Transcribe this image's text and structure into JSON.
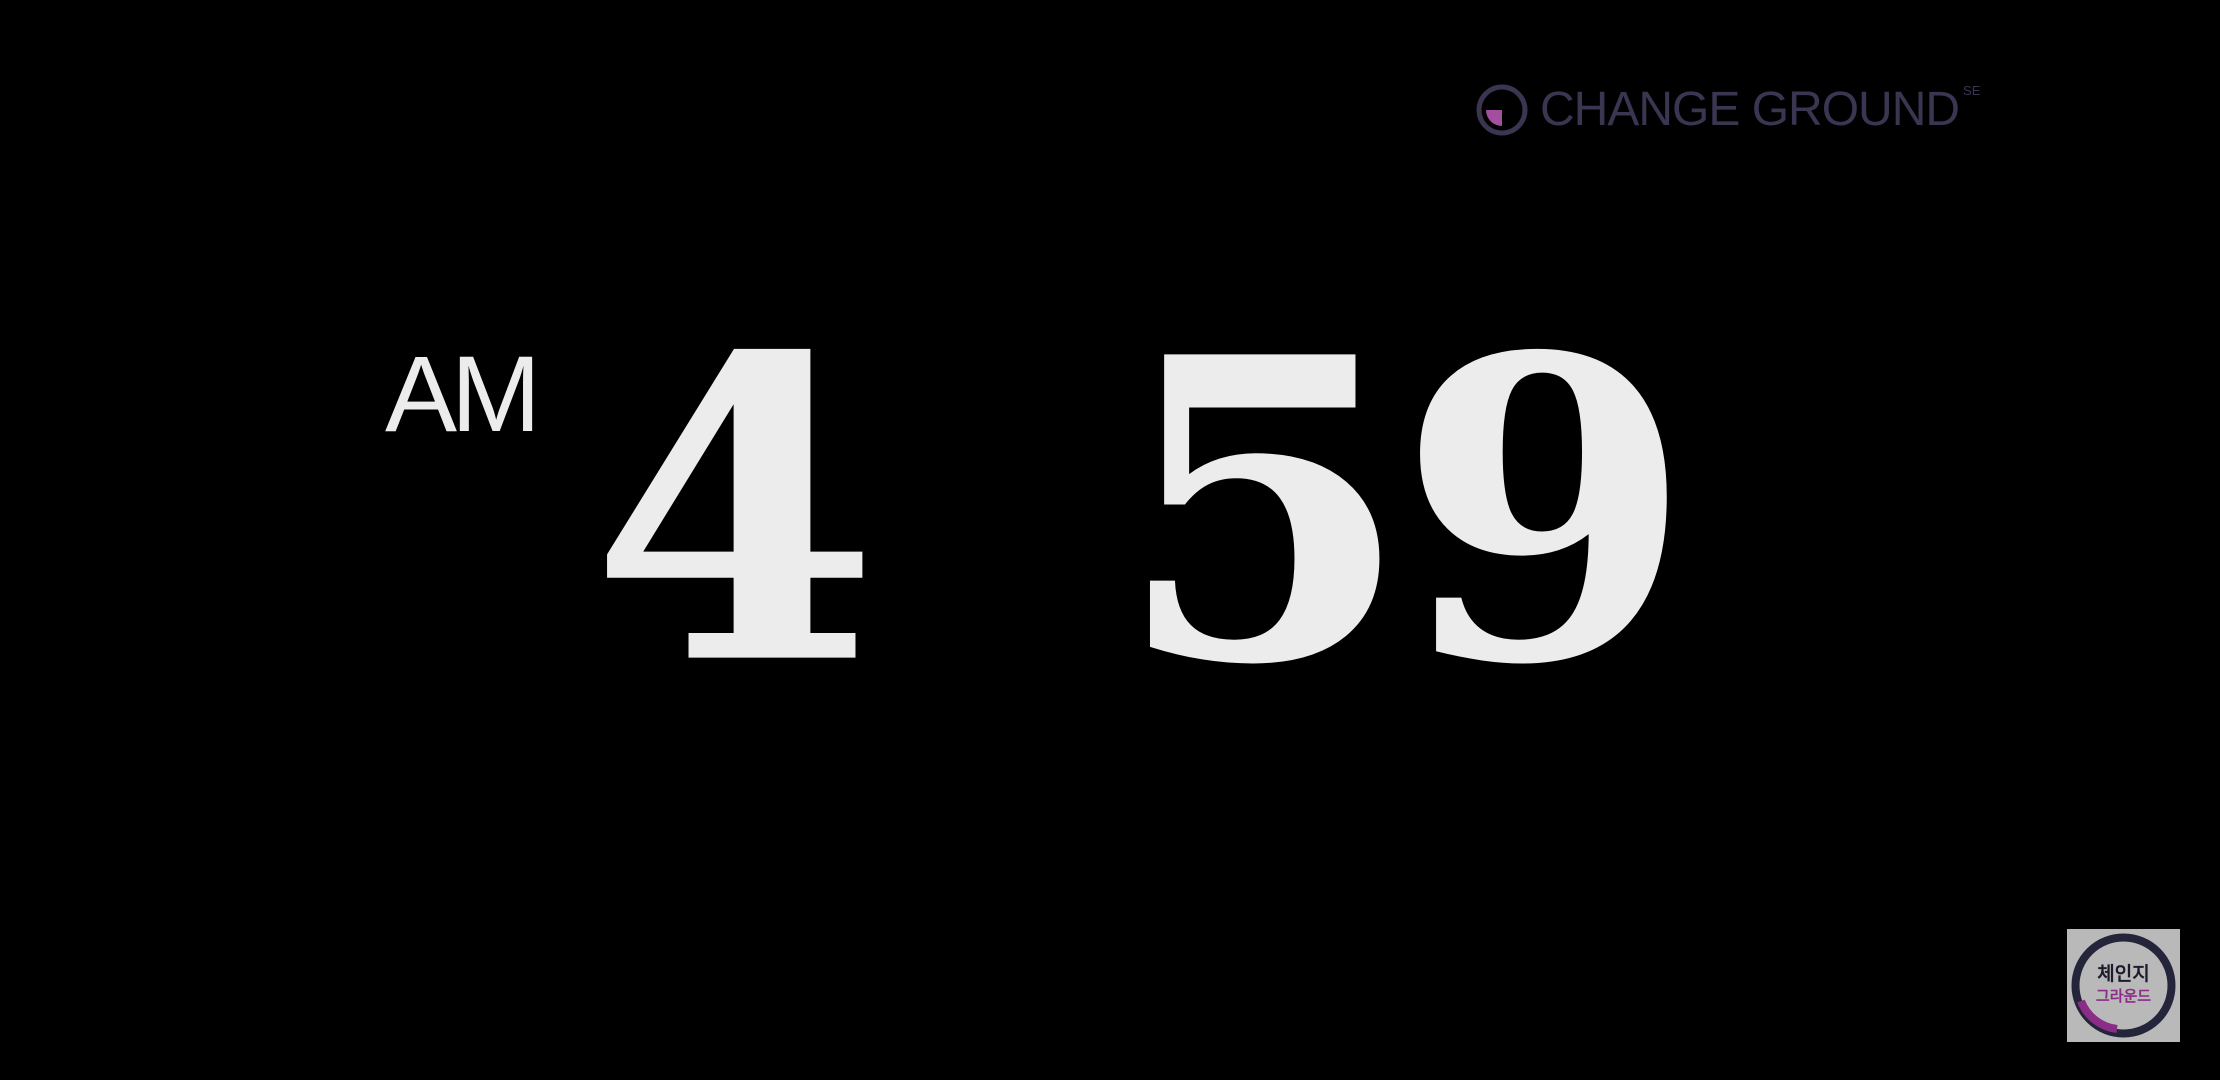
{
  "brand": {
    "name": "CHANGE GROUND",
    "superscript": "SE",
    "icon": "change-ground-logo",
    "text_color": "#3a3550",
    "accent_color": "#a24fa0"
  },
  "clock": {
    "meridiem": "AM",
    "hour": "4",
    "minutes": "59",
    "color": "#ececec"
  },
  "watermark": {
    "line1": "체인지",
    "line2": "그라운드",
    "icon": "channel-badge-logo",
    "ring_color": "#24243a",
    "accent_color": "#8a2d86",
    "background_color": "#b9b9b9"
  },
  "background_color": "#000000"
}
